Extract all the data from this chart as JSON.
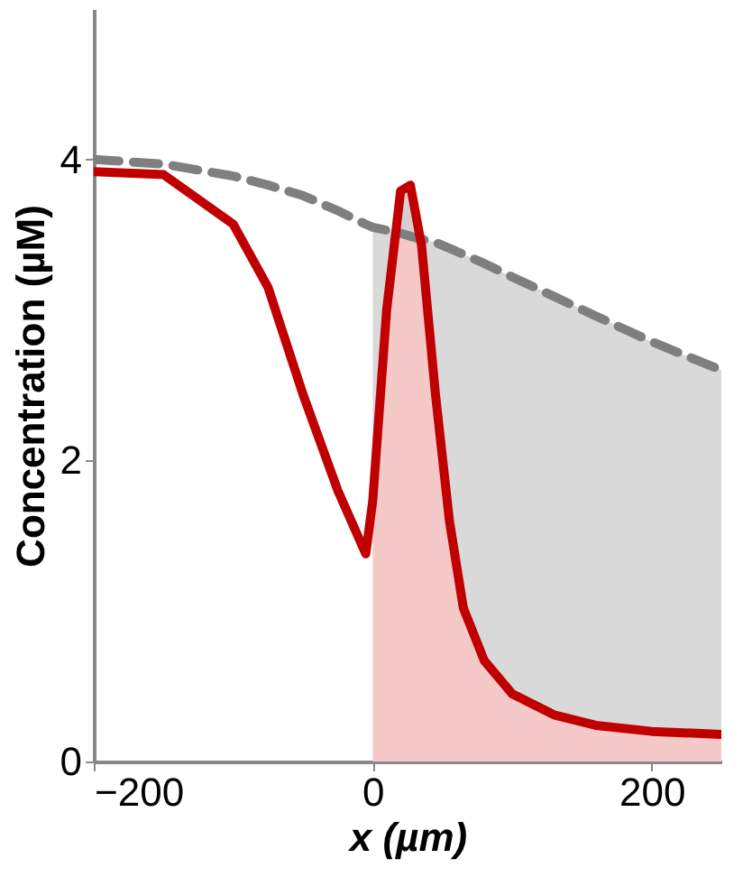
{
  "chart_data": {
    "type": "line",
    "xlabel": "x (µm)",
    "ylabel": "Concentration (µM)",
    "xlim": [
      -200,
      250
    ],
    "ylim": [
      0,
      5
    ],
    "xticks": [
      -200,
      0,
      200
    ],
    "yticks": [
      0,
      2,
      4
    ],
    "grid": false,
    "x": [
      -200,
      -150,
      -100,
      -75,
      -50,
      -25,
      -5,
      0,
      10,
      20,
      27,
      35,
      45,
      55,
      65,
      80,
      100,
      130,
      160,
      200,
      250
    ],
    "series": [
      {
        "type": "area",
        "color": "#f6c9c9",
        "x": [
          0,
          10,
          20,
          27,
          35,
          45,
          55,
          65,
          80,
          100,
          130,
          160,
          200,
          250
        ],
        "values": [
          1.73,
          3.0,
          3.79,
          3.83,
          3.43,
          2.44,
          1.6,
          1.02,
          0.67,
          0.45,
          0.31,
          0.24,
          0.2,
          0.18
        ]
      },
      {
        "type": "line",
        "color": "#7f7f7f",
        "line_style": "dashed",
        "values": [
          4.0,
          3.97,
          3.89,
          3.83,
          3.76,
          3.66,
          3.57,
          3.55,
          3.53,
          3.51,
          3.49,
          3.47,
          3.45,
          3.41,
          3.37,
          3.31,
          3.22,
          3.09,
          2.96,
          2.79,
          2.6
        ],
        "lower": [
          null,
          null,
          null,
          null,
          null,
          null,
          null,
          1.73,
          3.0,
          3.79,
          3.83,
          3.43,
          2.44,
          1.6,
          1.02,
          0.67,
          0.45,
          0.31,
          0.24,
          0.2,
          0.18
        ],
        "upper": [
          null,
          null,
          null,
          null,
          null,
          null,
          null,
          3.55,
          3.53,
          3.51,
          3.49,
          3.47,
          3.45,
          3.41,
          3.37,
          3.31,
          3.22,
          3.09,
          2.96,
          2.79,
          2.6
        ]
      },
      {
        "color": "#c00000",
        "line_style": "solid",
        "values": [
          3.92,
          3.9,
          3.57,
          3.15,
          2.44,
          1.8,
          1.38,
          1.73,
          3.0,
          3.79,
          3.83,
          3.43,
          2.44,
          1.6,
          1.02,
          0.67,
          0.45,
          0.31,
          0.24,
          0.2,
          0.18
        ]
      }
    ]
  }
}
